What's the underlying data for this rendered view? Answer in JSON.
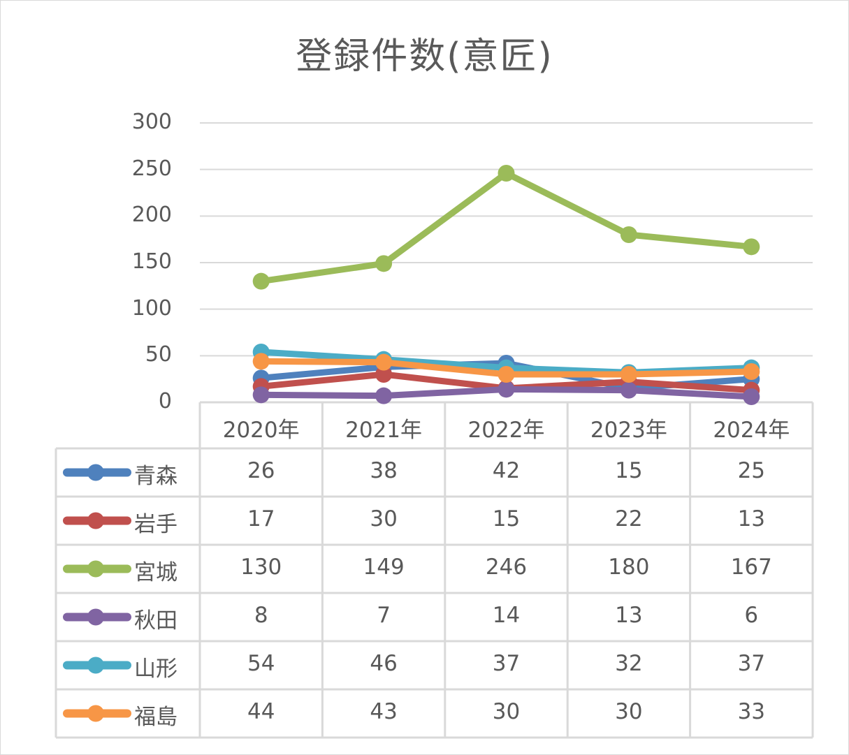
{
  "title": "登録件数(意匠)",
  "chart_data": {
    "type": "line",
    "title": "登録件数(意匠)",
    "xlabel": "",
    "ylabel": "",
    "ylim": [
      0,
      300
    ],
    "yticks": [
      0,
      50,
      100,
      150,
      200,
      250,
      300
    ],
    "grid": true,
    "legend_position": "data-table",
    "categories": [
      "2020年",
      "2021年",
      "2022年",
      "2023年",
      "2024年"
    ],
    "series": [
      {
        "name": "青森",
        "color": "#4f81bd",
        "values": [
          26,
          38,
          42,
          15,
          25
        ]
      },
      {
        "name": "岩手",
        "color": "#c0504d",
        "values": [
          17,
          30,
          15,
          22,
          13
        ]
      },
      {
        "name": "宮城",
        "color": "#9bbb59",
        "values": [
          130,
          149,
          246,
          180,
          167
        ]
      },
      {
        "name": "秋田",
        "color": "#8064a2",
        "values": [
          8,
          7,
          14,
          13,
          6
        ]
      },
      {
        "name": "山形",
        "color": "#4bacc6",
        "values": [
          54,
          46,
          37,
          32,
          37
        ]
      },
      {
        "name": "福島",
        "color": "#f79646",
        "values": [
          44,
          43,
          30,
          30,
          33
        ]
      }
    ]
  },
  "colors": {
    "grid": "#d9d9d9",
    "text": "#595959",
    "table_border": "#d9d9d9"
  }
}
